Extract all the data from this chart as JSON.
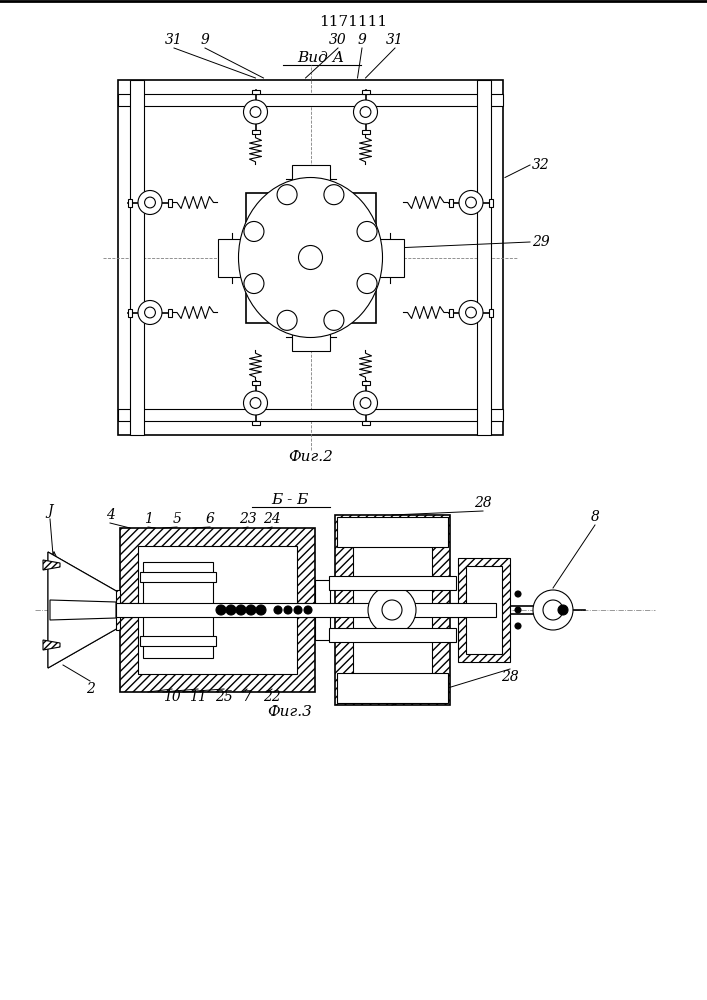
{
  "title": "1171111",
  "fig2_label": "Фиг.2",
  "fig3_label": "Фиг.3",
  "view_label": "Вид А",
  "section_label": "Б - Б",
  "bg_color": "#ffffff",
  "line_color": "#000000"
}
